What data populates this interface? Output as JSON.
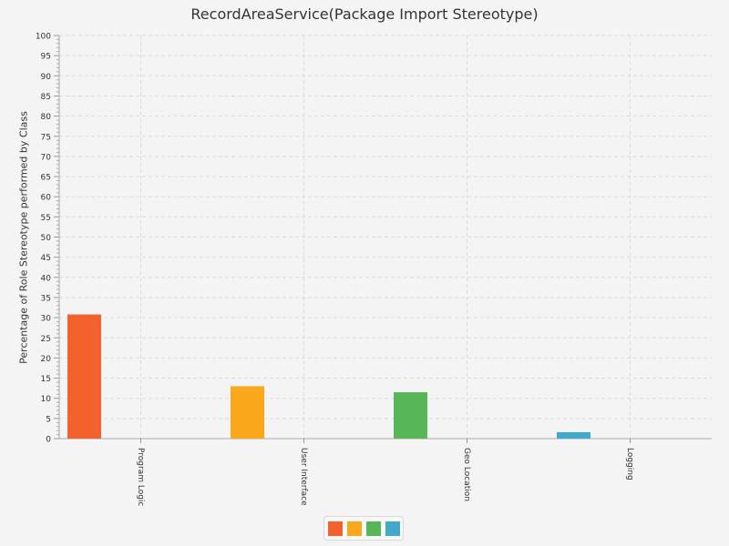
{
  "chart_data": {
    "type": "bar",
    "title": "RecordAreaService(Package Import Stereotype)",
    "xlabel": "",
    "ylabel": "Percentage of Role Stereotype performed by Class",
    "categories": [
      "Program Logic",
      "User Interface",
      "Geo Location",
      "Logging"
    ],
    "series": [
      {
        "values": [
          30.8,
          13.0,
          11.5,
          1.6
        ]
      }
    ],
    "colors": [
      "#f3622d",
      "#fba71b",
      "#57b757",
      "#41a9c9"
    ],
    "ylim": [
      0,
      100
    ],
    "y_major_step": 5,
    "y_minor_step": 1,
    "grid": true,
    "legend": {
      "position": "bottom"
    }
  }
}
